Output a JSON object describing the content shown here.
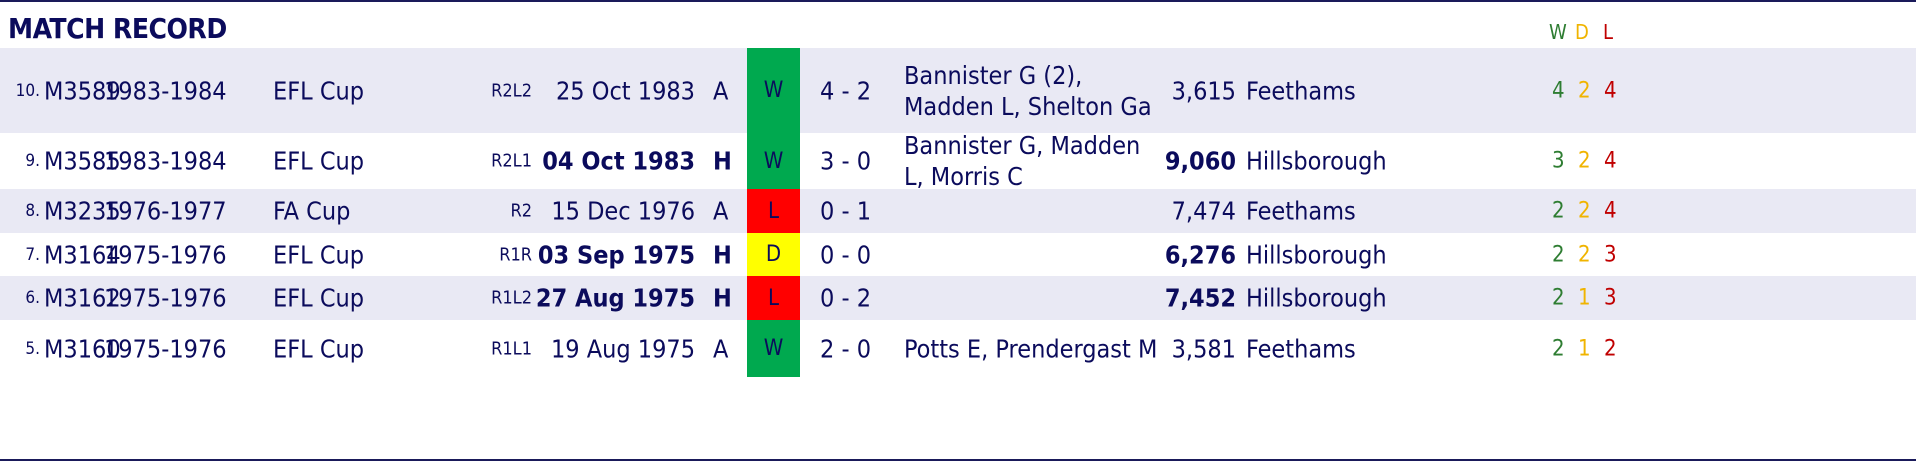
{
  "header": {
    "title": "MATCH RECORD",
    "w": "W",
    "d": "D",
    "l": "L"
  },
  "colors": {
    "win": "#00a94f",
    "draw": "#ffff00",
    "loss": "#ff0000",
    "text": "#0b0b5c",
    "row_alt": "#e9e9f4"
  },
  "rows": [
    {
      "num": "10.",
      "code": "M3589",
      "season": "1983-1984",
      "comp": "EFL Cup",
      "round": "R2L2",
      "date": "25 Oct 1983",
      "ha": "A",
      "result": "W",
      "score": "4 - 2",
      "scorers": "Bannister G (2), Madden L, Shelton Ga",
      "att": "3,615",
      "venue": "Feethams",
      "w": "4",
      "d": "2",
      "l": "4"
    },
    {
      "num": "9.",
      "code": "M3585",
      "season": "1983-1984",
      "comp": "EFL Cup",
      "round": "R2L1",
      "date": "04 Oct 1983",
      "ha": "H",
      "result": "W",
      "score": "3 - 0",
      "scorers": "Bannister G, Madden L, Morris C",
      "att": "9,060",
      "venue": "Hillsborough",
      "w": "3",
      "d": "2",
      "l": "4"
    },
    {
      "num": "8.",
      "code": "M3235",
      "season": "1976-1977",
      "comp": "FA Cup",
      "round": "R2",
      "date": "15 Dec 1976",
      "ha": "A",
      "result": "L",
      "score": "0 - 1",
      "scorers": "",
      "att": "7,474",
      "venue": "Feethams",
      "w": "2",
      "d": "2",
      "l": "4"
    },
    {
      "num": "7.",
      "code": "M3164",
      "season": "1975-1976",
      "comp": "EFL Cup",
      "round": "R1R",
      "date": "03 Sep 1975",
      "ha": "H",
      "result": "D",
      "score": "0 - 0",
      "scorers": "",
      "att": "6,276",
      "venue": "Hillsborough",
      "w": "2",
      "d": "2",
      "l": "3"
    },
    {
      "num": "6.",
      "code": "M3162",
      "season": "1975-1976",
      "comp": "EFL Cup",
      "round": "R1L2",
      "date": "27 Aug 1975",
      "ha": "H",
      "result": "L",
      "score": "0 - 2",
      "scorers": "",
      "att": "7,452",
      "venue": "Hillsborough",
      "w": "2",
      "d": "1",
      "l": "3"
    },
    {
      "num": "5.",
      "code": "M3160",
      "season": "1975-1976",
      "comp": "EFL Cup",
      "round": "R1L1",
      "date": "19 Aug 1975",
      "ha": "A",
      "result": "W",
      "score": "2 - 0",
      "scorers": "Potts E, Prendergast M",
      "att": "3,581",
      "venue": "Feethams",
      "w": "2",
      "d": "1",
      "l": "2"
    }
  ]
}
